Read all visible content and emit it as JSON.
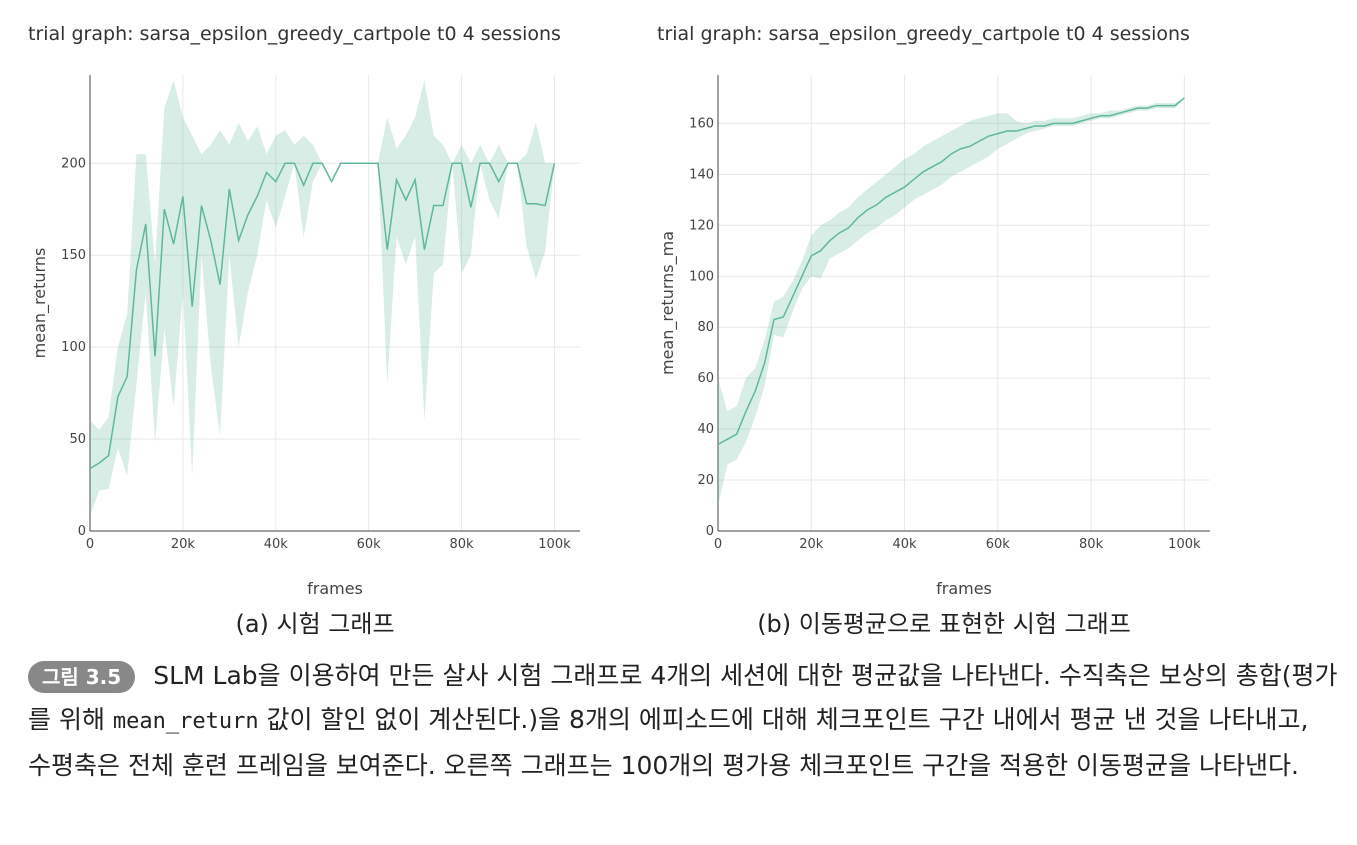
{
  "chart_data": [
    {
      "type": "line",
      "title": "trial graph: sarsa_epsilon_greedy_cartpole t0 4 sessions",
      "subcaption": "(a) 시험 그래프",
      "x_label": "frames",
      "y_label": "mean_returns",
      "x": [
        0,
        2000,
        4000,
        6000,
        8000,
        10000,
        12000,
        14000,
        16000,
        18000,
        20000,
        22000,
        24000,
        26000,
        28000,
        30000,
        32000,
        34000,
        36000,
        38000,
        40000,
        42000,
        44000,
        46000,
        48000,
        50000,
        52000,
        54000,
        56000,
        58000,
        60000,
        62000,
        64000,
        66000,
        68000,
        70000,
        72000,
        74000,
        76000,
        78000,
        80000,
        82000,
        84000,
        86000,
        88000,
        90000,
        92000,
        94000,
        96000,
        98000,
        100000
      ],
      "series": [
        {
          "color": "#5fb89a",
          "band_color": "rgba(95,184,154,0.25)",
          "values": [
            34,
            37,
            41,
            73,
            84,
            142,
            167,
            95,
            175,
            156,
            182,
            122,
            177,
            158,
            134,
            186,
            158,
            172,
            182,
            195,
            190,
            200,
            200,
            188,
            200,
            200,
            190,
            200,
            200,
            200,
            200,
            200,
            153,
            191,
            180,
            191,
            153,
            177,
            177,
            200,
            200,
            176,
            200,
            200,
            190,
            200,
            200,
            178,
            178,
            177,
            200
          ],
          "upper": [
            60,
            55,
            62,
            100,
            118,
            205,
            205,
            145,
            230,
            245,
            225,
            215,
            205,
            210,
            218,
            210,
            222,
            212,
            220,
            205,
            215,
            218,
            210,
            215,
            210,
            200,
            200,
            200,
            200,
            200,
            200,
            200,
            225,
            208,
            215,
            225,
            245,
            215,
            210,
            200,
            210,
            200,
            210,
            200,
            210,
            200,
            200,
            205,
            222,
            200,
            200
          ],
          "lower": [
            8,
            22,
            23,
            45,
            30,
            80,
            130,
            48,
            110,
            68,
            130,
            30,
            150,
            90,
            52,
            150,
            100,
            130,
            150,
            180,
            165,
            182,
            200,
            160,
            190,
            200,
            200,
            200,
            200,
            200,
            200,
            200,
            80,
            160,
            145,
            160,
            60,
            140,
            145,
            200,
            140,
            150,
            200,
            180,
            170,
            200,
            200,
            155,
            137,
            152,
            200
          ]
        }
      ],
      "xlim": [
        0,
        105500
      ],
      "ylim": [
        0,
        248
      ],
      "xticks": [
        0,
        {
          "value": 20000,
          "label": "20k"
        },
        {
          "value": 40000,
          "label": "40k"
        },
        {
          "value": 60000,
          "label": "60k"
        },
        {
          "value": 80000,
          "label": "80k"
        },
        {
          "value": 100000,
          "label": "100k"
        }
      ],
      "yticks": [
        0,
        50,
        100,
        150,
        200
      ],
      "grid": true
    },
    {
      "type": "line",
      "title": "trial graph: sarsa_epsilon_greedy_cartpole t0 4 sessions",
      "subcaption": "(b) 이동평균으로 표현한 시험 그래프",
      "x_label": "frames",
      "y_label": "mean_returns_ma",
      "x": [
        0,
        2000,
        4000,
        6000,
        8000,
        10000,
        12000,
        14000,
        16000,
        18000,
        20000,
        22000,
        24000,
        26000,
        28000,
        30000,
        32000,
        34000,
        36000,
        38000,
        40000,
        42000,
        44000,
        46000,
        48000,
        50000,
        52000,
        54000,
        56000,
        58000,
        60000,
        62000,
        64000,
        66000,
        68000,
        70000,
        72000,
        74000,
        76000,
        78000,
        80000,
        82000,
        84000,
        86000,
        88000,
        90000,
        92000,
        94000,
        96000,
        98000,
        100000
      ],
      "series": [
        {
          "color": "#5fb89a",
          "band_color": "rgba(95,184,154,0.25)",
          "values": [
            34,
            36,
            38,
            47,
            55,
            66,
            83,
            84,
            92,
            100,
            108,
            110,
            114,
            117,
            119,
            123,
            126,
            128,
            131,
            133,
            135,
            138,
            141,
            143,
            145,
            148,
            150,
            151,
            153,
            155,
            156,
            157,
            157,
            158,
            159,
            159,
            160,
            160,
            160,
            161,
            162,
            163,
            163,
            164,
            165,
            166,
            166,
            167,
            167,
            167,
            170
          ],
          "upper": [
            60,
            47,
            49,
            60,
            64,
            75,
            90,
            92,
            98,
            106,
            116,
            120,
            122,
            125,
            127,
            131,
            134,
            137,
            140,
            143,
            146,
            148,
            151,
            153,
            155,
            157,
            159,
            161,
            162,
            163,
            164,
            164,
            161,
            160,
            161,
            161,
            162,
            162,
            162,
            163,
            164,
            164,
            165,
            165,
            166,
            167,
            167,
            168,
            168,
            168,
            170
          ],
          "lower": [
            10,
            26,
            28,
            35,
            45,
            57,
            77,
            76,
            86,
            95,
            100,
            99,
            107,
            109,
            111,
            114,
            117,
            119,
            122,
            124,
            127,
            130,
            132,
            134,
            136,
            139,
            141,
            143,
            145,
            147,
            150,
            152,
            154,
            156,
            157,
            158,
            159,
            159,
            159,
            160,
            161,
            162,
            162,
            163,
            164,
            165,
            165,
            166,
            166,
            166,
            170
          ]
        }
      ],
      "xlim": [
        0,
        105500
      ],
      "ylim": [
        0,
        179
      ],
      "xticks": [
        0,
        {
          "value": 20000,
          "label": "20k"
        },
        {
          "value": 40000,
          "label": "40k"
        },
        {
          "value": 60000,
          "label": "60k"
        },
        {
          "value": 80000,
          "label": "80k"
        },
        {
          "value": 100000,
          "label": "100k"
        }
      ],
      "yticks": [
        0,
        20,
        40,
        60,
        80,
        100,
        120,
        140,
        160
      ],
      "grid": true
    }
  ],
  "caption": {
    "label": "그림 3.5",
    "text_before": "SLM Lab을 이용하여 만든 살사 시험 그래프로 4개의 세션에 대한 평균값을 나타낸다. 수직축은 보상의 총합(평가를 위해 ",
    "code": "mean_return",
    "text_after": " 값이 할인 없이 계산된다.)을 8개의 에피소드에 대해 체크포인트 구간 내에서 평균 낸 것을 나타내고, 수평축은 전체 훈련 프레임을 보여준다. 오른쪽 그래프는 100개의 평가용 체크포인트 구간을 적용한 이동평균을 나타낸다."
  }
}
